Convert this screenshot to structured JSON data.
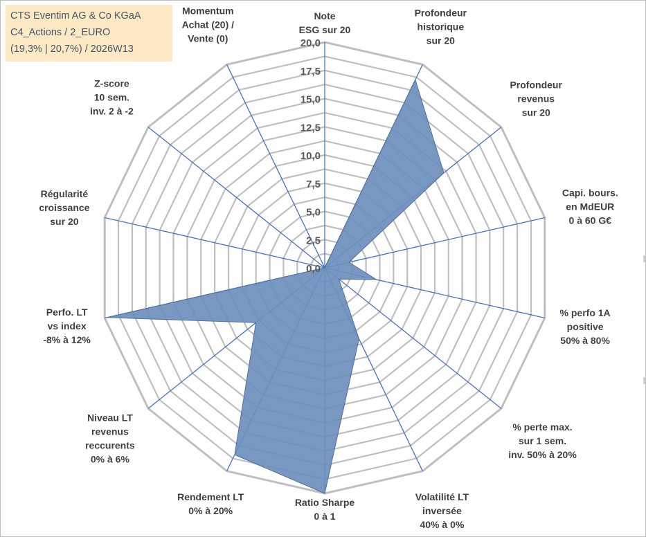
{
  "title": {
    "line1": "CTS Eventim AG & Co KGaA",
    "line2": "C4_Actions / 2_EURO",
    "line3": "(19,3% | 20,7%) / 2026W13"
  },
  "chart_data": {
    "type": "radar",
    "rmin": 0,
    "rmax": 20,
    "rings": [
      1.25,
      2.5,
      3.75,
      5,
      6.25,
      7.5,
      8.75,
      10,
      11.25,
      12.5,
      13.75,
      15,
      16.25,
      17.5,
      18.75,
      20
    ],
    "tick_values": [
      0,
      2.5,
      5,
      7.5,
      10,
      12.5,
      15,
      17.5,
      20
    ],
    "tick_labels": [
      "0,0",
      "2,5",
      "5,0",
      "7,5",
      "10,0",
      "12,5",
      "15,0",
      "17,5",
      "20,0"
    ],
    "categories": [
      {
        "label": [
          "Note",
          "ESG sur 20"
        ]
      },
      {
        "label": [
          "Profondeur",
          "historique",
          "sur 20"
        ]
      },
      {
        "label": [
          "Profondeur",
          "revenus",
          "sur 20"
        ]
      },
      {
        "label": [
          "Capi. bours.",
          "en MdEUR",
          "0 à 60 G€"
        ]
      },
      {
        "label": [
          "% perfo 1A",
          "positive",
          "50% à 80%"
        ]
      },
      {
        "label": [
          "% perte max.",
          "sur 1 sem.",
          "inv. 50% à 20%"
        ]
      },
      {
        "label": [
          "Volatilité LT",
          "inversée",
          "40% à 0%"
        ]
      },
      {
        "label": [
          "Ratio Sharpe",
          "0 à 1"
        ]
      },
      {
        "label": [
          "Rendement LT",
          "0% à 20%"
        ]
      },
      {
        "label": [
          "Niveau LT",
          "revenus",
          "reccurents",
          "0% à 6%"
        ]
      },
      {
        "label": [
          "Perfo. LT",
          "vs index",
          "-8% à 12%"
        ]
      },
      {
        "label": [
          "Régularité",
          "croissance",
          "sur 20"
        ]
      },
      {
        "label": [
          "Z-score",
          "10 sem.",
          "inv. 2 à -2"
        ]
      },
      {
        "label": [
          "Momentum",
          "Achat (20) /",
          "Vente (0)"
        ]
      }
    ],
    "series": [
      {
        "values": [
          0,
          18.5,
          13.5,
          2.2,
          4.7,
          1.6,
          7.0,
          20,
          18.4,
          7.8,
          19.8,
          0,
          0,
          0
        ]
      }
    ],
    "colors": {
      "fill": "#6d8fbd",
      "stroke": "#4e6f9e",
      "grid": "#bfbfbf",
      "spoke": "#4472c4",
      "title_bg": "#fde9c4",
      "title_text": "#44546a"
    }
  }
}
